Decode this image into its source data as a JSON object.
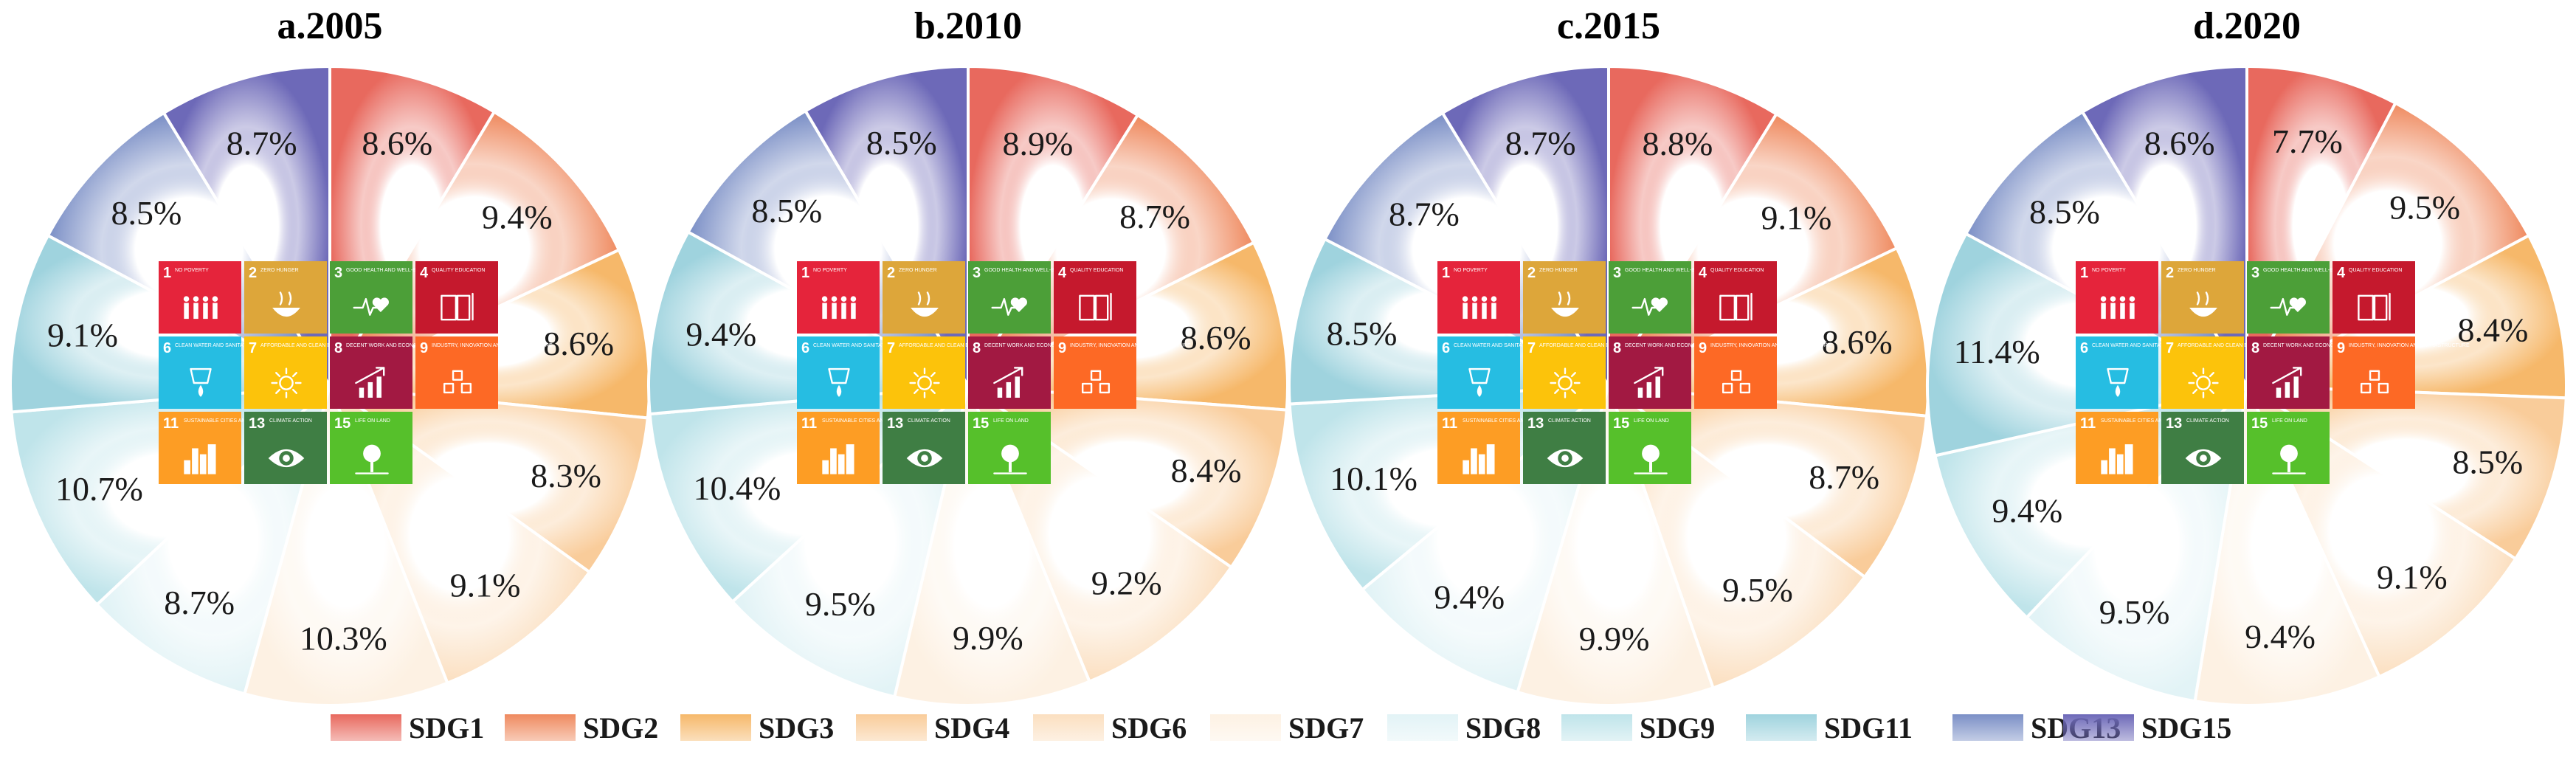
{
  "chart_data": [
    {
      "type": "pie",
      "title": "a.2005",
      "categories": [
        "SDG1",
        "SDG2",
        "SDG3",
        "SDG4",
        "SDG6",
        "SDG7",
        "SDG8",
        "SDG9",
        "SDG11",
        "SDG13",
        "SDG15"
      ],
      "values": [
        8.6,
        9.4,
        8.6,
        8.3,
        9.1,
        10.3,
        8.7,
        10.7,
        9.1,
        8.5,
        8.7
      ],
      "labels": [
        "8.6%",
        "9.4%",
        "8.6%",
        "8.3%",
        "9.1%",
        "10.3%",
        "8.7%",
        "10.7%",
        "9.1%",
        "8.5%",
        "8.7%"
      ]
    },
    {
      "type": "pie",
      "title": "b.2010",
      "categories": [
        "SDG1",
        "SDG2",
        "SDG3",
        "SDG4",
        "SDG6",
        "SDG7",
        "SDG8",
        "SDG9",
        "SDG11",
        "SDG13",
        "SDG15"
      ],
      "values": [
        8.9,
        8.7,
        8.6,
        8.4,
        9.2,
        9.9,
        9.5,
        10.4,
        9.4,
        8.5,
        8.5
      ],
      "labels": [
        "8.9%",
        "8.7%",
        "8.6%",
        "8.4%",
        "9.2%",
        "9.9%",
        "9.5%",
        "10.4%",
        "9.4%",
        "8.5%",
        "8.5%"
      ]
    },
    {
      "type": "pie",
      "title": "c.2015",
      "categories": [
        "SDG1",
        "SDG2",
        "SDG3",
        "SDG4",
        "SDG6",
        "SDG7",
        "SDG8",
        "SDG9",
        "SDG11",
        "SDG13",
        "SDG15"
      ],
      "values": [
        8.8,
        9.1,
        8.6,
        8.7,
        9.5,
        9.9,
        9.4,
        10.1,
        8.5,
        8.7,
        8.7
      ],
      "labels": [
        "8.8%",
        "9.1%",
        "8.6%",
        "8.7%",
        "9.5%",
        "9.9%",
        "9.4%",
        "10.1%",
        "8.5%",
        "8.7%",
        "8.7%"
      ]
    },
    {
      "type": "pie",
      "title": "d.2020",
      "categories": [
        "SDG1",
        "SDG2",
        "SDG3",
        "SDG4",
        "SDG6",
        "SDG7",
        "SDG8",
        "SDG9",
        "SDG11",
        "SDG13",
        "SDG15"
      ],
      "values": [
        7.7,
        9.5,
        8.4,
        8.5,
        9.1,
        9.4,
        9.5,
        9.4,
        11.4,
        8.5,
        8.6
      ],
      "labels": [
        "7.7%",
        "9.5%",
        "8.4%",
        "8.5%",
        "9.1%",
        "9.4%",
        "9.5%",
        "9.4%",
        "11.4%",
        "8.5%",
        "8.6%"
      ]
    }
  ],
  "legend": [
    {
      "name": "SDG1",
      "color": "#e8695e"
    },
    {
      "name": "SDG2",
      "color": "#ef8a5f"
    },
    {
      "name": "SDG3",
      "color": "#f6b86a"
    },
    {
      "name": "SDG4",
      "color": "#f9cc9a"
    },
    {
      "name": "SDG6",
      "color": "#fbdfc0"
    },
    {
      "name": "SDG7",
      "color": "#fdf1e3"
    },
    {
      "name": "SDG8",
      "color": "#e2f3f6"
    },
    {
      "name": "SDG9",
      "color": "#bfe4ea"
    },
    {
      "name": "SDG11",
      "color": "#9fd3de"
    },
    {
      "name": "SDG13",
      "color": "#7b8fc6"
    },
    {
      "name": "SDG15",
      "color": "#6d69b8"
    }
  ],
  "icons": [
    {
      "num": "1",
      "text": "NO POVERTY",
      "color": "#e5243b",
      "icon": "people-icon"
    },
    {
      "num": "2",
      "text": "ZERO HUNGER",
      "color": "#dda63a",
      "icon": "bowl-icon"
    },
    {
      "num": "3",
      "text": "GOOD HEALTH AND WELL-BEING",
      "color": "#4c9f38",
      "icon": "heartbeat-icon"
    },
    {
      "num": "4",
      "text": "QUALITY EDUCATION",
      "color": "#c5192d",
      "icon": "book-icon"
    },
    {
      "num": "6",
      "text": "CLEAN WATER AND SANITATION",
      "color": "#26bde2",
      "icon": "water-drop-icon"
    },
    {
      "num": "7",
      "text": "AFFORDABLE AND CLEAN ENERGY",
      "color": "#fcc30b",
      "icon": "sun-icon"
    },
    {
      "num": "8",
      "text": "DECENT WORK AND ECONOMIC GROWTH",
      "color": "#a21942",
      "icon": "growth-chart-icon"
    },
    {
      "num": "9",
      "text": "INDUSTRY, INNOVATION AND INFRASTRUCTURE",
      "color": "#fd6925",
      "icon": "cubes-icon"
    },
    {
      "num": "11",
      "text": "SUSTAINABLE CITIES AND COMMUNITIES",
      "color": "#fd9d24",
      "icon": "city-icon"
    },
    {
      "num": "13",
      "text": "CLIMATE ACTION",
      "color": "#3f7e44",
      "icon": "eye-globe-icon"
    },
    {
      "num": "15",
      "text": "LIFE ON LAND",
      "color": "#56c02b",
      "icon": "tree-icon"
    }
  ]
}
